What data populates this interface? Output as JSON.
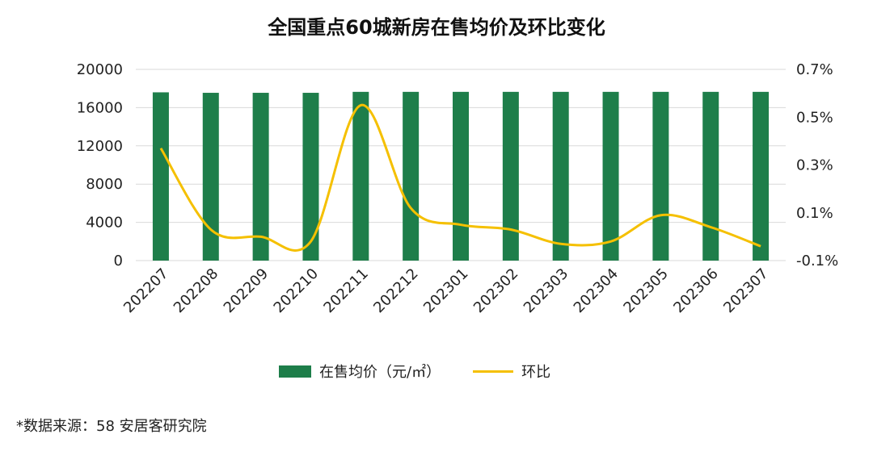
{
  "chart_data": {
    "type": "bar+line",
    "title": "全国重点60城新房在售均价及环比变化",
    "categories": [
      "202207",
      "202208",
      "202209",
      "202210",
      "202211",
      "202212",
      "202301",
      "202302",
      "202303",
      "202304",
      "202305",
      "202306",
      "202307"
    ],
    "series": [
      {
        "name": "在售均价（元/㎡）",
        "type": "bar",
        "axis": "left",
        "color": "#1e7e4a",
        "values": [
          17600,
          17550,
          17550,
          17550,
          17650,
          17650,
          17650,
          17650,
          17650,
          17650,
          17650,
          17650,
          17650
        ]
      },
      {
        "name": "环比",
        "type": "line",
        "axis": "right",
        "color": "#f5c000",
        "values": [
          0.37,
          0.03,
          0.0,
          -0.02,
          0.55,
          0.12,
          0.05,
          0.03,
          -0.03,
          -0.02,
          0.09,
          0.04,
          -0.04
        ]
      }
    ],
    "left_axis": {
      "min": 0,
      "max": 20000,
      "ticks": [
        "0",
        "4000",
        "8000",
        "12000",
        "16000",
        "20000"
      ]
    },
    "right_axis": {
      "min": -0.1,
      "max": 0.7,
      "ticks": [
        "-0.1%",
        "0.1%",
        "0.3%",
        "0.5%",
        "0.7%"
      ]
    },
    "grid": true,
    "legend": "bottom"
  },
  "footer": {
    "source": "*数据来源：58 安居客研究院"
  }
}
